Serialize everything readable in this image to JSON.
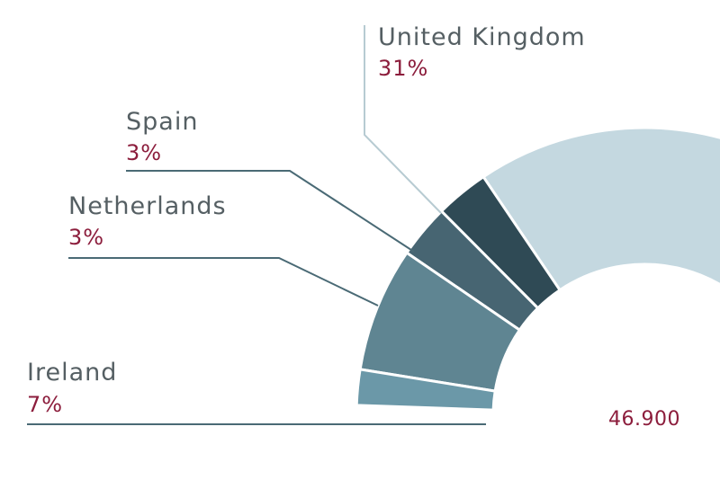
{
  "chart_data": {
    "type": "pie",
    "variant": "donut",
    "total": "46.900",
    "slices": [
      {
        "name": "United Kingdom",
        "percent": "31%",
        "value": 31,
        "color": "#c4d8e0"
      },
      {
        "name": "Spain",
        "percent": "3%",
        "value": 3,
        "color": "#2f4a55"
      },
      {
        "name": "Netherlands",
        "percent": "3%",
        "value": 3,
        "color": "#476572"
      },
      {
        "name": "Ireland",
        "percent": "7%",
        "value": 7,
        "color": "#5f8592"
      },
      {
        "name": "",
        "percent": "",
        "value": 2,
        "color": "#6b98a8"
      }
    ],
    "colors": {
      "label_text": "#555f63",
      "percent_text": "#8c1d3c",
      "leader_line": "#4a6a75",
      "leader_line_light": "#b7cbd2"
    }
  }
}
